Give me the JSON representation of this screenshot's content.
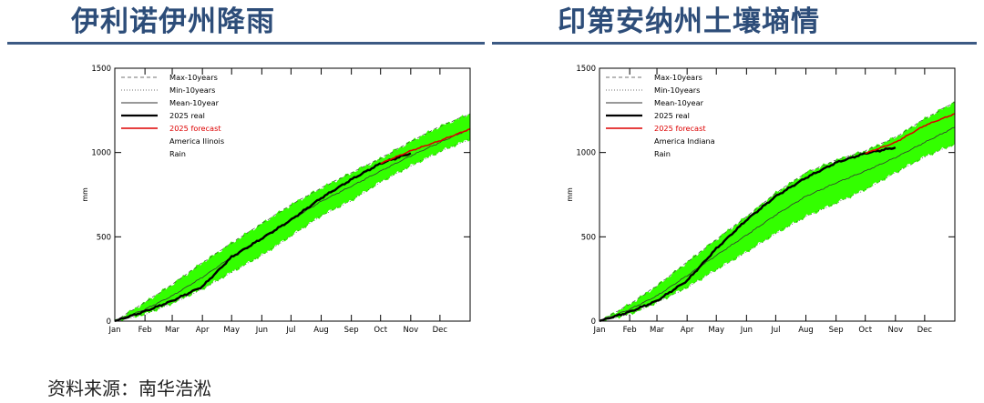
{
  "titles": {
    "left": "伊利诺伊州降雨",
    "right": "印第安纳州土壤墒情"
  },
  "footer": {
    "source": "资料来源：南华浩淞"
  },
  "colors": {
    "title": "#2d4d79",
    "rule": "#3c5a84",
    "band": "#33ff00",
    "real": "#000000",
    "forecast": "#dd0000"
  },
  "chart_data": [
    {
      "type": "area",
      "ylabel": "mm",
      "ylim": [
        0,
        1500
      ],
      "yticks": [
        0,
        500,
        1000,
        1500
      ],
      "xticks": [
        "Jan",
        "Feb",
        "Mar",
        "Apr",
        "May",
        "Jun",
        "Jul",
        "Aug",
        "Sep",
        "Oct",
        "Nov",
        "Dec"
      ],
      "x_day": [
        0,
        31,
        59,
        90,
        120,
        151,
        181,
        212,
        243,
        273,
        304,
        334,
        365
      ],
      "legend": {
        "position": "top-left",
        "entries": [
          "Max-10years",
          "Min-10years",
          "Mean-10year",
          "2025 real",
          "2025 forecast",
          "America Ilinois",
          "Rain"
        ]
      },
      "series": [
        {
          "name": "Max-10years",
          "style": "dashed",
          "values": [
            0,
            112,
            218,
            347,
            463,
            579,
            690,
            790,
            880,
            965,
            1066,
            1155,
            1230
          ]
        },
        {
          "name": "Min-10years",
          "style": "dotted",
          "values": [
            0,
            40,
            105,
            190,
            290,
            390,
            505,
            625,
            715,
            825,
            920,
            1005,
            1080
          ]
        },
        {
          "name": "Mean-10year",
          "style": "thin",
          "values": [
            0,
            70,
            150,
            260,
            380,
            490,
            600,
            710,
            800,
            890,
            980,
            1060,
            1140
          ]
        },
        {
          "name": "2025 real",
          "style": "bold",
          "values": [
            0,
            58,
            120,
            205,
            380,
            490,
            600,
            730,
            840,
            935,
            996
          ]
        },
        {
          "name": "2025 forecast",
          "style": "red",
          "values": [
            null,
            null,
            null,
            null,
            null,
            null,
            null,
            null,
            null,
            935,
            1010,
            1070,
            1140
          ]
        }
      ]
    },
    {
      "type": "area",
      "ylabel": "mm",
      "ylim": [
        0,
        1500
      ],
      "yticks": [
        0,
        500,
        1000,
        1500
      ],
      "xticks": [
        "Jan",
        "Feb",
        "Mar",
        "Apr",
        "May",
        "Jun",
        "Jul",
        "Aug",
        "Sep",
        "Oct",
        "Nov",
        "Dec"
      ],
      "x_day": [
        0,
        31,
        59,
        90,
        120,
        151,
        181,
        212,
        243,
        273,
        304,
        334,
        365
      ],
      "legend": {
        "position": "top-left",
        "entries": [
          "Max-10years",
          "Min-10years",
          "Mean-10year",
          "2025 real",
          "2025 forecast",
          "America Indiana",
          "Rain"
        ]
      },
      "series": [
        {
          "name": "Max-10years",
          "style": "dashed",
          "values": [
            0,
            100,
            210,
            350,
            485,
            620,
            760,
            880,
            955,
            1010,
            1090,
            1200,
            1300
          ]
        },
        {
          "name": "Min-10years",
          "style": "dotted",
          "values": [
            0,
            40,
            110,
            200,
            305,
            410,
            520,
            620,
            700,
            780,
            880,
            975,
            1050
          ]
        },
        {
          "name": "Mean-10year",
          "style": "thin",
          "values": [
            0,
            70,
            150,
            270,
            390,
            510,
            630,
            740,
            820,
            890,
            970,
            1060,
            1150
          ]
        },
        {
          "name": "2025 real",
          "style": "bold",
          "values": [
            0,
            55,
            120,
            240,
            430,
            600,
            740,
            850,
            940,
            995,
            1030
          ]
        },
        {
          "name": "2025 forecast",
          "style": "red",
          "values": [
            null,
            null,
            null,
            null,
            null,
            null,
            null,
            null,
            null,
            995,
            1060,
            1160,
            1230
          ]
        }
      ]
    }
  ]
}
